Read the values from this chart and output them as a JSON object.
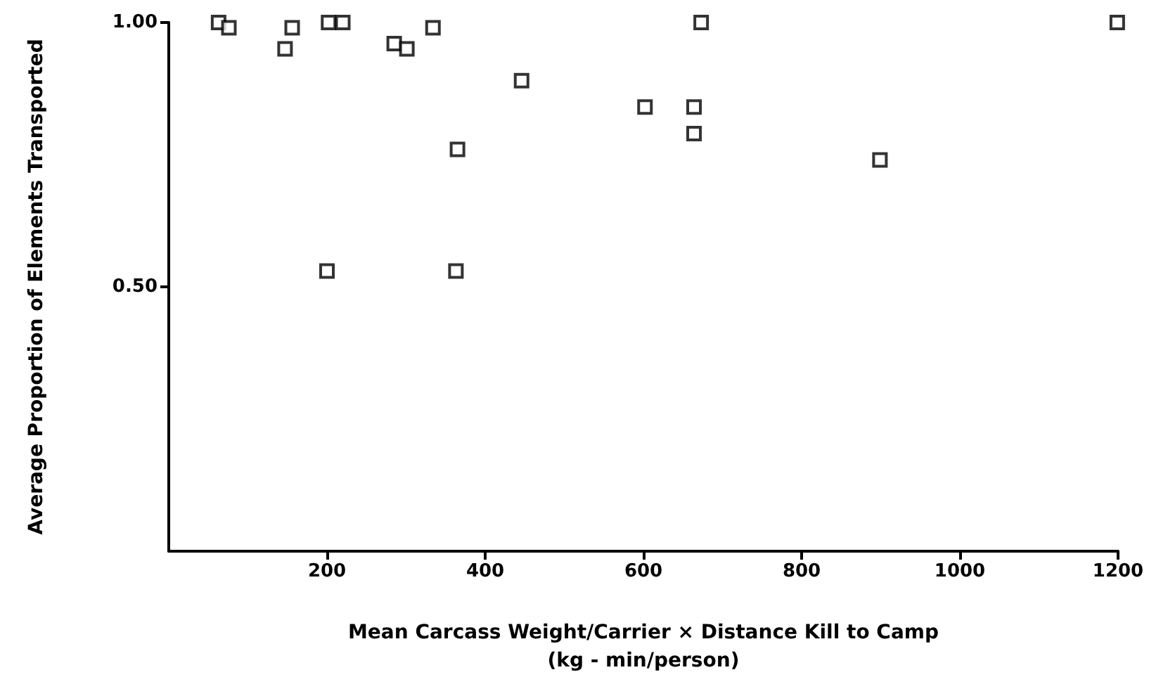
{
  "chart_data": {
    "type": "scatter",
    "xlabel": "Mean Carcass Weight/Carrier × Distance Kill to Camp\n(kg - min/person)",
    "ylabel": "Average Proportion of Elements Transported",
    "x": [
      63,
      76,
      156,
      147,
      202,
      220,
      285,
      301,
      334,
      446,
      365,
      200,
      363,
      673,
      602,
      664,
      664,
      899,
      1199
    ],
    "values": [
      1.0,
      0.99,
      0.99,
      0.95,
      1.0,
      1.0,
      0.96,
      0.95,
      0.99,
      0.89,
      0.76,
      0.53,
      0.53,
      1.0,
      0.84,
      0.84,
      0.79,
      0.74,
      1.0
    ],
    "color": "#000000",
    "marker": "square",
    "xlim": [
      0,
      1200
    ],
    "xticks": [
      200,
      400,
      600,
      800,
      1000,
      1200
    ],
    "ylim": [
      0,
      1.0
    ],
    "yticks": [
      {
        "value": 0.5,
        "label": "0.50"
      },
      {
        "value": 1.0,
        "label": "1.00"
      }
    ]
  }
}
